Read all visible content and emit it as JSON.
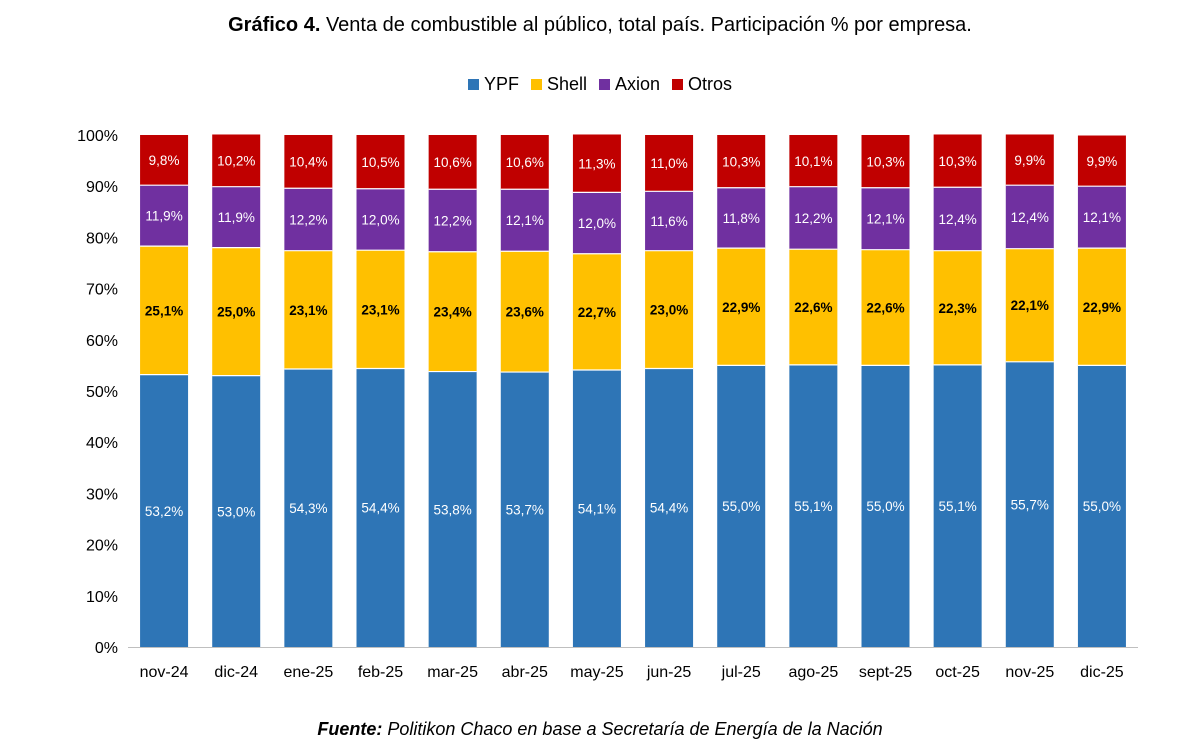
{
  "header": {
    "title_bold": "Gráfico 4.",
    "title_rest": " Venta de combustible al público, total país. Participación % por empresa."
  },
  "footer": {
    "source_bold": "Fuente:",
    "source_rest": " Politikon Chaco en base a Secretaría de Energía de la Nación"
  },
  "chart_data": {
    "type": "bar",
    "stacked": true,
    "title": "Gráfico 4. Venta de combustible al público, total país. Participación % por empresa.",
    "xlabel": "",
    "ylabel": "",
    "ylim": [
      0,
      100
    ],
    "yticks": [
      "0%",
      "10%",
      "20%",
      "30%",
      "40%",
      "50%",
      "60%",
      "70%",
      "80%",
      "90%",
      "100%"
    ],
    "legend_position": "top-center",
    "categories": [
      "nov-24",
      "dic-24",
      "ene-25",
      "feb-25",
      "mar-25",
      "abr-25",
      "may-25",
      "jun-25",
      "jul-25",
      "ago-25",
      "sept-25",
      "oct-25",
      "nov-25",
      "dic-25"
    ],
    "series": [
      {
        "name": "YPF",
        "color": "#2E75B6",
        "label_color": "#FFFFFF",
        "values": [
          53.2,
          53.0,
          54.3,
          54.4,
          53.8,
          53.7,
          54.1,
          54.4,
          55.0,
          55.1,
          55.0,
          55.1,
          55.7,
          55.0
        ],
        "labels": [
          "53,2%",
          "53,0%",
          "54,3%",
          "54,4%",
          "53,8%",
          "53,7%",
          "54,1%",
          "54,4%",
          "55,0%",
          "55,1%",
          "55,0%",
          "55,1%",
          "55,7%",
          "55,0%"
        ]
      },
      {
        "name": "Shell",
        "color": "#FFC000",
        "label_color": "#000000",
        "values": [
          25.1,
          25.0,
          23.1,
          23.1,
          23.4,
          23.6,
          22.7,
          23.0,
          22.9,
          22.6,
          22.6,
          22.3,
          22.1,
          22.9
        ],
        "labels": [
          "25,1%",
          "25,0%",
          "23,1%",
          "23,1%",
          "23,4%",
          "23,6%",
          "22,7%",
          "23,0%",
          "22,9%",
          "22,6%",
          "22,6%",
          "22,3%",
          "22,1%",
          "22,9%"
        ]
      },
      {
        "name": "Axion",
        "color": "#7030A0",
        "label_color": "#FFFFFF",
        "values": [
          11.9,
          11.9,
          12.2,
          12.0,
          12.2,
          12.1,
          12.0,
          11.6,
          11.8,
          12.2,
          12.1,
          12.4,
          12.4,
          12.1
        ],
        "labels": [
          "11,9%",
          "11,9%",
          "12,2%",
          "12,0%",
          "12,2%",
          "12,1%",
          "12,0%",
          "11,6%",
          "11,8%",
          "12,2%",
          "12,1%",
          "12,4%",
          "12,4%",
          "12,1%"
        ]
      },
      {
        "name": "Otros",
        "color": "#C00000",
        "label_color": "#FFFFFF",
        "values": [
          9.8,
          10.2,
          10.4,
          10.5,
          10.6,
          10.6,
          11.3,
          11.0,
          10.3,
          10.1,
          10.3,
          10.3,
          9.9,
          9.9
        ],
        "labels": [
          "9,8%",
          "10,2%",
          "10,4%",
          "10,5%",
          "10,6%",
          "10,6%",
          "11,3%",
          "11,0%",
          "10,3%",
          "10,1%",
          "10,3%",
          "10,3%",
          "9,9%",
          "9,9%"
        ]
      }
    ]
  }
}
